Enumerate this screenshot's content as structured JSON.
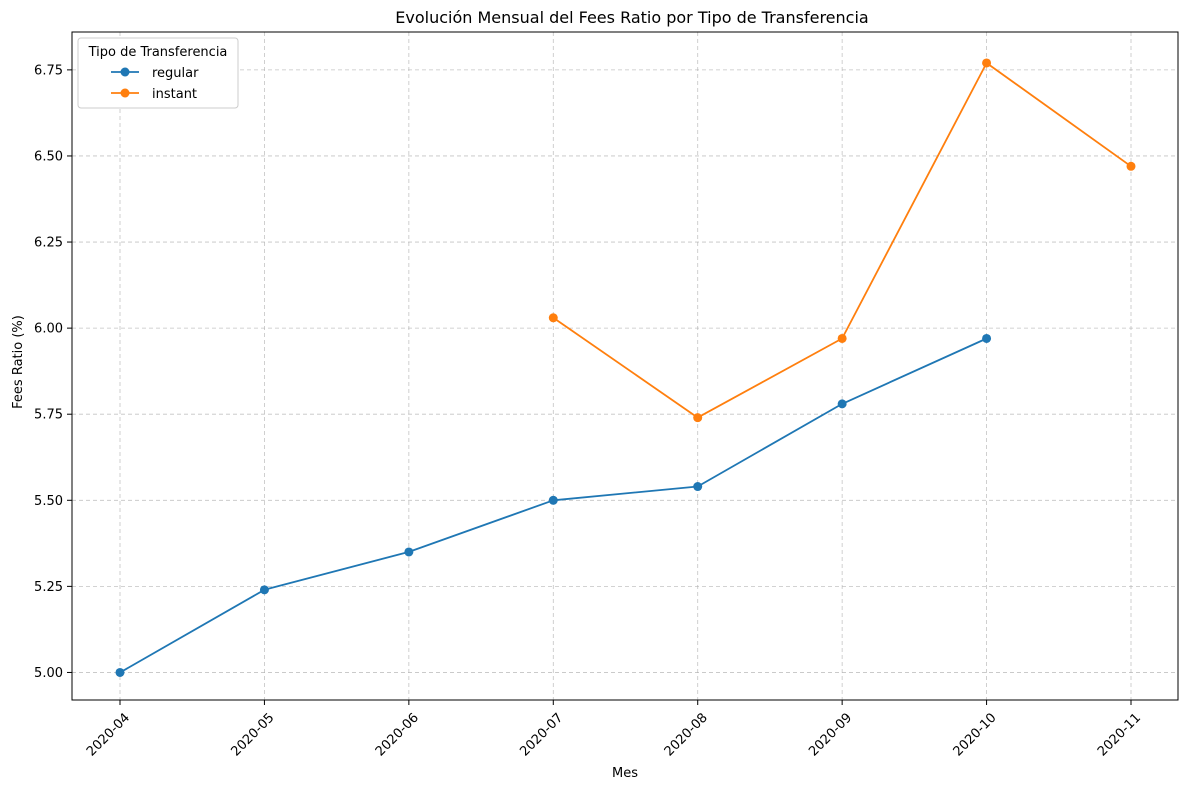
{
  "chart_data": {
    "type": "line",
    "title": "Evolución Mensual del Fees Ratio por Tipo de Transferencia",
    "xlabel": "Mes",
    "ylabel": "Fees Ratio (%)",
    "categories": [
      "2020-04",
      "2020-05",
      "2020-06",
      "2020-07",
      "2020-08",
      "2020-09",
      "2020-10",
      "2020-11"
    ],
    "ylim": [
      4.92,
      6.86
    ],
    "yticks": [
      "5.00",
      "5.25",
      "5.50",
      "5.75",
      "6.00",
      "6.25",
      "6.50",
      "6.75"
    ],
    "grid": true,
    "legend": {
      "title": "Tipo de Transferencia",
      "position": "top-left"
    },
    "series": [
      {
        "name": "regular",
        "color": "#1f77b4",
        "values": [
          5.0,
          5.24,
          5.35,
          5.5,
          5.54,
          5.78,
          5.97,
          null
        ]
      },
      {
        "name": "instant",
        "color": "#ff7f0e",
        "values": [
          null,
          null,
          null,
          6.03,
          5.74,
          5.97,
          6.77,
          6.47
        ]
      }
    ]
  }
}
